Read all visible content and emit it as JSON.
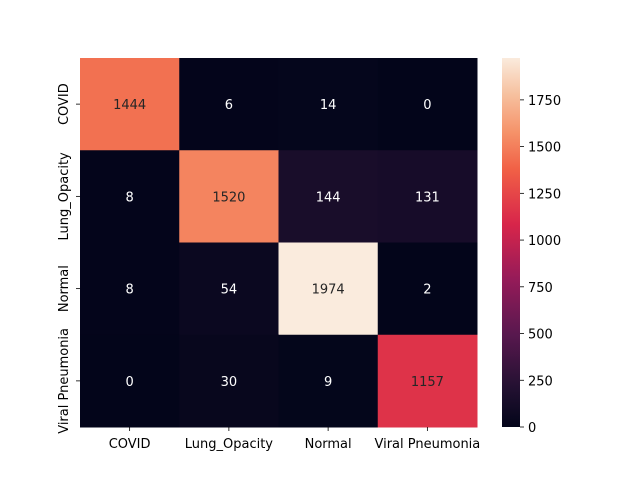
{
  "chart_data": {
    "type": "heatmap",
    "title": "",
    "xlabel": "",
    "ylabel": "",
    "x_categories": [
      "COVID",
      "Lung_Opacity",
      "Normal",
      "Viral Pneumonia"
    ],
    "y_categories": [
      "COVID",
      "Lung_Opacity",
      "Normal",
      "Viral Pneumonia"
    ],
    "values": [
      [
        1444,
        6,
        14,
        0
      ],
      [
        8,
        1520,
        144,
        131
      ],
      [
        8,
        54,
        1974,
        2
      ],
      [
        0,
        30,
        9,
        1157
      ]
    ],
    "colorbar": {
      "colormap": "rocket",
      "vmin": 0,
      "vmax": 1974,
      "ticks": [
        "0",
        "250",
        "500",
        "750",
        "1000",
        "1250",
        "1500",
        "1750"
      ]
    },
    "cell_labels": true,
    "grid": false
  }
}
